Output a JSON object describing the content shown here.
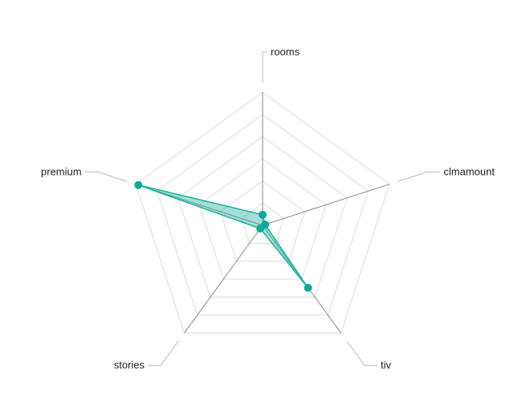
{
  "chart_data": {
    "type": "radar",
    "axes": [
      "rooms",
      "clmamount",
      "tiv",
      "stories",
      "premium"
    ],
    "series": [
      {
        "values": [
          0.08,
          0.02,
          0.58,
          0.03,
          0.98
        ]
      }
    ],
    "rlim": [
      0,
      1
    ],
    "ring_count": 6,
    "grid": true,
    "legend": "none",
    "colors": {
      "series_line": "#1ab09a",
      "series_fill": "#1ab09a",
      "series_point": "#12a898",
      "axis": "#888888",
      "grid": "#dddddd",
      "leader": "#bbbbbb"
    }
  }
}
